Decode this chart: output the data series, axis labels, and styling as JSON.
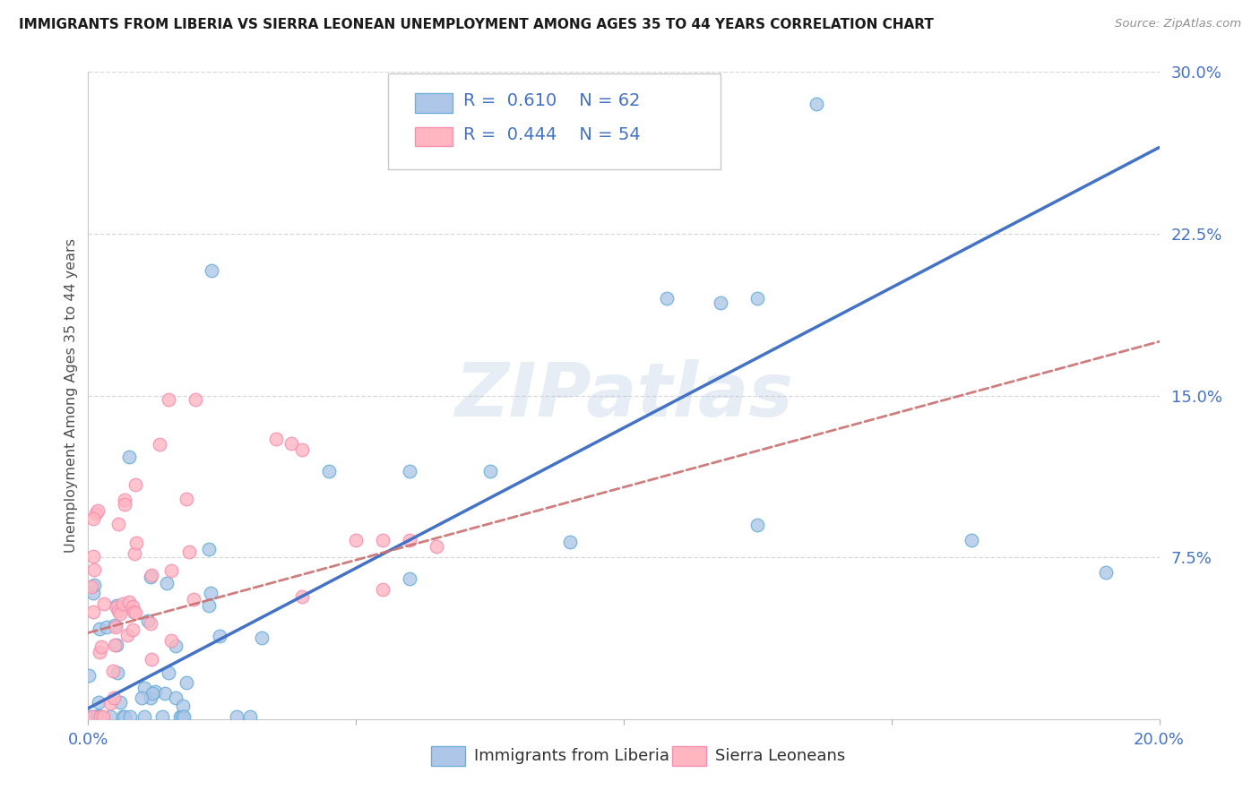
{
  "title": "IMMIGRANTS FROM LIBERIA VS SIERRA LEONEAN UNEMPLOYMENT AMONG AGES 35 TO 44 YEARS CORRELATION CHART",
  "source": "Source: ZipAtlas.com",
  "ylabel": "Unemployment Among Ages 35 to 44 years",
  "legend_label1": "Immigrants from Liberia",
  "legend_label2": "Sierra Leoneans",
  "R1": 0.61,
  "N1": 62,
  "R2": 0.444,
  "N2": 54,
  "xlim": [
    0.0,
    0.2
  ],
  "ylim": [
    0.0,
    0.3
  ],
  "color_blue": "#aec7e8",
  "color_pink": "#ffb6c1",
  "color_blue_edge": "#6baed6",
  "color_pink_edge": "#f48fb1",
  "color_blue_line": "#4472c4",
  "color_pink_line": "#c97070",
  "color_text_blue": "#4472c4",
  "color_text_pink": "#e07070",
  "watermark": "ZIPatlas",
  "blue_line_x0": 0.0,
  "blue_line_y0": 0.005,
  "blue_line_x1": 0.2,
  "blue_line_y1": 0.265,
  "pink_line_x0": 0.0,
  "pink_line_y0": 0.04,
  "pink_line_x1": 0.2,
  "pink_line_y1": 0.175,
  "seed1": 99,
  "seed2": 77,
  "grid_color": "#d8d8d8",
  "spine_color": "#c8c8c8"
}
